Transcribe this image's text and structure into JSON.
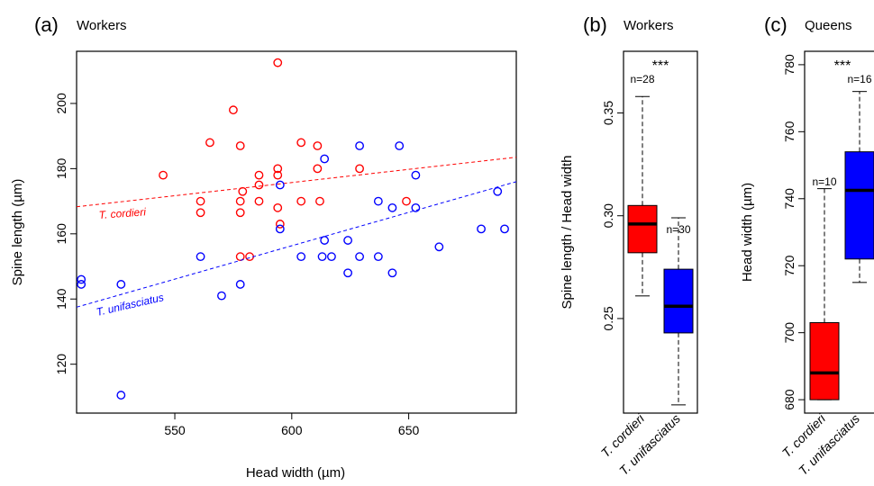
{
  "panels": {
    "a": {
      "letter": "(a)",
      "title": "Workers"
    },
    "b": {
      "letter": "(b)",
      "title": "Workers"
    },
    "c": {
      "letter": "(c)",
      "title": "Queens"
    }
  },
  "colors": {
    "cordieri": "#ff0000",
    "unifasciatus": "#0000ff",
    "axis": "#000000"
  },
  "chart_data": [
    {
      "type": "scatter",
      "panel": "a",
      "xlabel": "Head width (µm)",
      "ylabel": "Spine length (µm)",
      "xlim": [
        508,
        696
      ],
      "ylim": [
        105,
        216
      ],
      "xticks": [
        550,
        600,
        650
      ],
      "yticks": [
        120,
        140,
        160,
        180,
        200
      ],
      "series": [
        {
          "name": "T. cordieri",
          "color": "#ff0000",
          "points": [
            [
              545,
              178
            ],
            [
              561,
              170
            ],
            [
              561,
              166.5
            ],
            [
              565,
              188
            ],
            [
              575,
              198
            ],
            [
              578,
              187
            ],
            [
              578,
              170
            ],
            [
              578,
              166.5
            ],
            [
              579,
              173
            ],
            [
              578,
              153
            ],
            [
              582,
              153
            ],
            [
              586,
              178
            ],
            [
              586,
              175
            ],
            [
              586,
              170
            ],
            [
              594,
              212.5
            ],
            [
              594,
              180
            ],
            [
              594,
              178
            ],
            [
              594,
              168
            ],
            [
              595,
              163
            ],
            [
              604,
              188
            ],
            [
              604,
              170
            ],
            [
              611,
              187
            ],
            [
              611,
              180
            ],
            [
              612,
              170
            ],
            [
              629,
              180
            ],
            [
              649,
              170
            ]
          ],
          "trend": {
            "x": [
              508,
              696
            ],
            "y": [
              168.3,
              183.5
            ]
          }
        },
        {
          "name": "T. unifasciatus",
          "color": "#0000ff",
          "points": [
            [
              510,
              146
            ],
            [
              510,
              144.5
            ],
            [
              527,
              144.5
            ],
            [
              527,
              110.5
            ],
            [
              561,
              153
            ],
            [
              570,
              141
            ],
            [
              578,
              144.5
            ],
            [
              595,
              175
            ],
            [
              595,
              161.5
            ],
            [
              604,
              153
            ],
            [
              613,
              153
            ],
            [
              614,
              183
            ],
            [
              614,
              158
            ],
            [
              617,
              153
            ],
            [
              624,
              158
            ],
            [
              624,
              148
            ],
            [
              629,
              187
            ],
            [
              629,
              153
            ],
            [
              637,
              170
            ],
            [
              637,
              153
            ],
            [
              643,
              168
            ],
            [
              643,
              148
            ],
            [
              646,
              187
            ],
            [
              653,
              178
            ],
            [
              653,
              168
            ],
            [
              663,
              156
            ],
            [
              681,
              161.5
            ],
            [
              688,
              173
            ],
            [
              691,
              161.5
            ]
          ],
          "trend": {
            "x": [
              508,
              696
            ],
            "y": [
              137.5,
              176
            ]
          }
        }
      ],
      "annotations": [
        "T. cordieri",
        "T. unifasciatus"
      ]
    },
    {
      "type": "box",
      "panel": "b",
      "ylabel": "Spine length / Head width",
      "ylim": [
        0.204,
        0.38
      ],
      "yticks": [
        0.25,
        0.3,
        0.35
      ],
      "ytick_labels": [
        "0.25",
        "0.30",
        "0.35"
      ],
      "categories": [
        "T. cordieri",
        "T. unifasciatus"
      ],
      "boxes": [
        {
          "name": "T. cordieri",
          "color": "#ff0000",
          "n_label": "n=28",
          "min": 0.261,
          "q1": 0.282,
          "median": 0.296,
          "q3": 0.305,
          "max": 0.358
        },
        {
          "name": "T. unifasciatus",
          "color": "#0000ff",
          "n_label": "n=30",
          "min": 0.208,
          "q1": 0.243,
          "median": 0.256,
          "q3": 0.274,
          "max": 0.299
        }
      ],
      "significance": "***"
    },
    {
      "type": "box",
      "panel": "c",
      "ylabel": "Head width (µm)",
      "ylim": [
        676,
        784
      ],
      "yticks": [
        680,
        700,
        720,
        740,
        760,
        780
      ],
      "ytick_labels": [
        "680",
        "700",
        "720",
        "740",
        "760",
        "780"
      ],
      "categories": [
        "T. cordieri",
        "T. unifasciatus"
      ],
      "boxes": [
        {
          "name": "T. cordieri",
          "color": "#ff0000",
          "n_label": "n=10",
          "min": 680,
          "q1": 680,
          "median": 688,
          "q3": 703,
          "max": 743
        },
        {
          "name": "T. unifasciatus",
          "color": "#0000ff",
          "n_label": "n=16",
          "min": 715,
          "q1": 722,
          "median": 742.5,
          "q3": 754,
          "max": 772
        }
      ],
      "significance": "***"
    }
  ]
}
